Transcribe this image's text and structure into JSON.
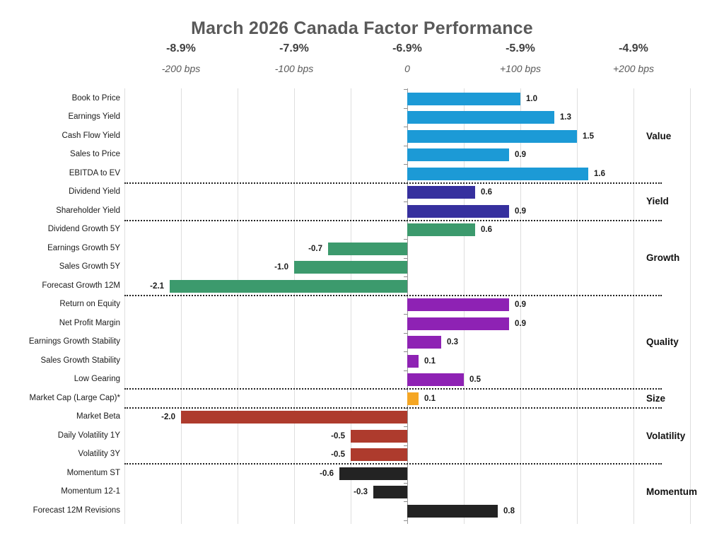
{
  "title": "March 2026 Canada Factor Performance",
  "chart_data": {
    "type": "bar",
    "orientation": "horizontal",
    "title": "March 2026 Canada Factor Performance",
    "xlim": [
      -2.5,
      2.5
    ],
    "gridline_step_units": 0.5,
    "grid": true,
    "legend_position": "none",
    "axis_top": {
      "percent_row": [
        {
          "text": "-8.9%",
          "bps": -200
        },
        {
          "text": "-7.9%",
          "bps": -100
        },
        {
          "text": "-6.9%",
          "bps": 0
        },
        {
          "text": "-5.9%",
          "bps": 100
        },
        {
          "text": "-4.9%",
          "bps": 200
        }
      ],
      "bps_row": [
        {
          "text": "-200 bps",
          "bps": -200
        },
        {
          "text": "-100 bps",
          "bps": -100
        },
        {
          "text": "0",
          "bps": 0
        },
        {
          "text": "+100 bps",
          "bps": 100
        },
        {
          "text": "+200 bps",
          "bps": 200
        }
      ]
    },
    "groups": [
      {
        "name": "Value",
        "color": "#1c9ad6",
        "items": [
          {
            "label": "Book to Price",
            "value": 1.0,
            "value_label": "1.0"
          },
          {
            "label": "Earnings Yield",
            "value": 1.3,
            "value_label": "1.3"
          },
          {
            "label": "Cash Flow Yield",
            "value": 1.5,
            "value_label": "1.5"
          },
          {
            "label": "Sales to Price",
            "value": 0.9,
            "value_label": "0.9"
          },
          {
            "label": "EBITDA to EV",
            "value": 1.6,
            "value_label": "1.6"
          }
        ]
      },
      {
        "name": "Yield",
        "color": "#36309e",
        "items": [
          {
            "label": "Dividend Yield",
            "value": 0.6,
            "value_label": "0.6"
          },
          {
            "label": "Shareholder Yield",
            "value": 0.9,
            "value_label": "0.9"
          }
        ]
      },
      {
        "name": "Growth",
        "color": "#3c9a6d",
        "items": [
          {
            "label": "Dividend Growth 5Y",
            "value": 0.6,
            "value_label": "0.6"
          },
          {
            "label": "Earnings Growth 5Y",
            "value": -0.7,
            "value_label": "-0.7"
          },
          {
            "label": "Sales Growth 5Y",
            "value": -1.0,
            "value_label": "-1.0"
          },
          {
            "label": "Forecast Growth 12M",
            "value": -2.1,
            "value_label": "-2.1"
          }
        ]
      },
      {
        "name": "Quality",
        "color": "#8e22b4",
        "items": [
          {
            "label": "Return on Equity",
            "value": 0.9,
            "value_label": "0.9"
          },
          {
            "label": "Net Profit Margin",
            "value": 0.9,
            "value_label": "0.9"
          },
          {
            "label": "Earnings Growth Stability",
            "value": 0.3,
            "value_label": "0.3"
          },
          {
            "label": "Sales Growth Stability",
            "value": 0.1,
            "value_label": "0.1"
          },
          {
            "label": "Low Gearing",
            "value": 0.5,
            "value_label": "0.5"
          }
        ]
      },
      {
        "name": "Size",
        "color": "#f5a623",
        "items": [
          {
            "label": "Market Cap (Large Cap)*",
            "value": 0.1,
            "value_label": "0.1"
          }
        ]
      },
      {
        "name": "Volatility",
        "color": "#ae3b2d",
        "items": [
          {
            "label": "Market Beta",
            "value": -2.0,
            "value_label": "-2.0"
          },
          {
            "label": "Daily Volatility 1Y",
            "value": -0.5,
            "value_label": "-0.5"
          },
          {
            "label": "Volatility 3Y",
            "value": -0.5,
            "value_label": "-0.5"
          }
        ]
      },
      {
        "name": "Momentum",
        "color": "#232323",
        "items": [
          {
            "label": "Momentum ST",
            "value": -0.6,
            "value_label": "-0.6"
          },
          {
            "label": "Momentum 12-1",
            "value": -0.3,
            "value_label": "-0.3"
          },
          {
            "label": "Forecast 12M Revisions",
            "value": 0.8,
            "value_label": "0.8"
          }
        ]
      }
    ]
  }
}
